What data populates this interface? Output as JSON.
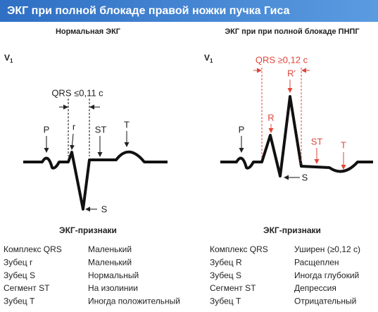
{
  "header": {
    "title": "ЭКГ при полной блокаде правой ножки пучка Гиса"
  },
  "panels": [
    {
      "title": "Нормальная ЭКГ",
      "lead": "V",
      "lead_sub": "1",
      "labels": {
        "qrs": "QRS ≤0,11 с",
        "p": "P",
        "r": "r",
        "st": "ST",
        "t": "T",
        "s": "S"
      },
      "table_title": "ЭКГ-признаки",
      "rows": [
        [
          "Комплекс QRS",
          "Маленький"
        ],
        [
          "Зубец r",
          "Маленький"
        ],
        [
          "Зубец S",
          "Нормальный"
        ],
        [
          "Сегмент ST",
          "На изолинии"
        ],
        [
          "Зубец T",
          "Иногда положительный"
        ]
      ]
    },
    {
      "title": "ЭКГ при при полной блокаде ПНПГ",
      "lead": "V",
      "lead_sub": "1",
      "labels": {
        "qrs": "QRS ≥0,12 с",
        "r": "R",
        "r2": "R'",
        "p": "P",
        "st": "ST",
        "t": "T",
        "s": "S"
      },
      "table_title": "ЭКГ-признаки",
      "rows": [
        [
          "Комплекс QRS",
          "Уширен (≥0,12 с)"
        ],
        [
          "Зубец R",
          "Расщеплен"
        ],
        [
          "Зубец S",
          "Иногда глубокий"
        ],
        [
          "Сегмент ST",
          "Депрессия"
        ],
        [
          "Зубец T",
          "Отрицательный"
        ]
      ]
    }
  ]
}
